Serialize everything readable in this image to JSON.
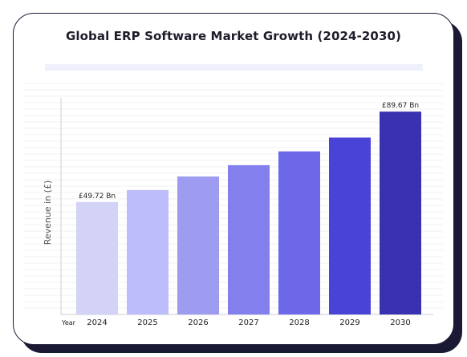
{
  "chart_data": {
    "type": "bar",
    "title": "Global ERP Software Market Growth (2024-2030)",
    "xlabel": "Year",
    "ylabel": "Revenue in (£)",
    "categories": [
      "2024",
      "2025",
      "2026",
      "2027",
      "2028",
      "2029",
      "2030"
    ],
    "values": [
      49.72,
      55.0,
      61.0,
      66.0,
      72.1,
      78.2,
      89.67
    ],
    "data_labels": {
      "0": "£49.72 Bn",
      "6": "£89.67 Bn"
    },
    "ylim": [
      0,
      100
    ],
    "grid": true,
    "legend": "none",
    "colors": [
      "#d3d3f7",
      "#bcbdfa",
      "#9d9cf0",
      "#8380ee",
      "#6c68e8",
      "#4a43d8",
      "#3a31b0"
    ]
  }
}
